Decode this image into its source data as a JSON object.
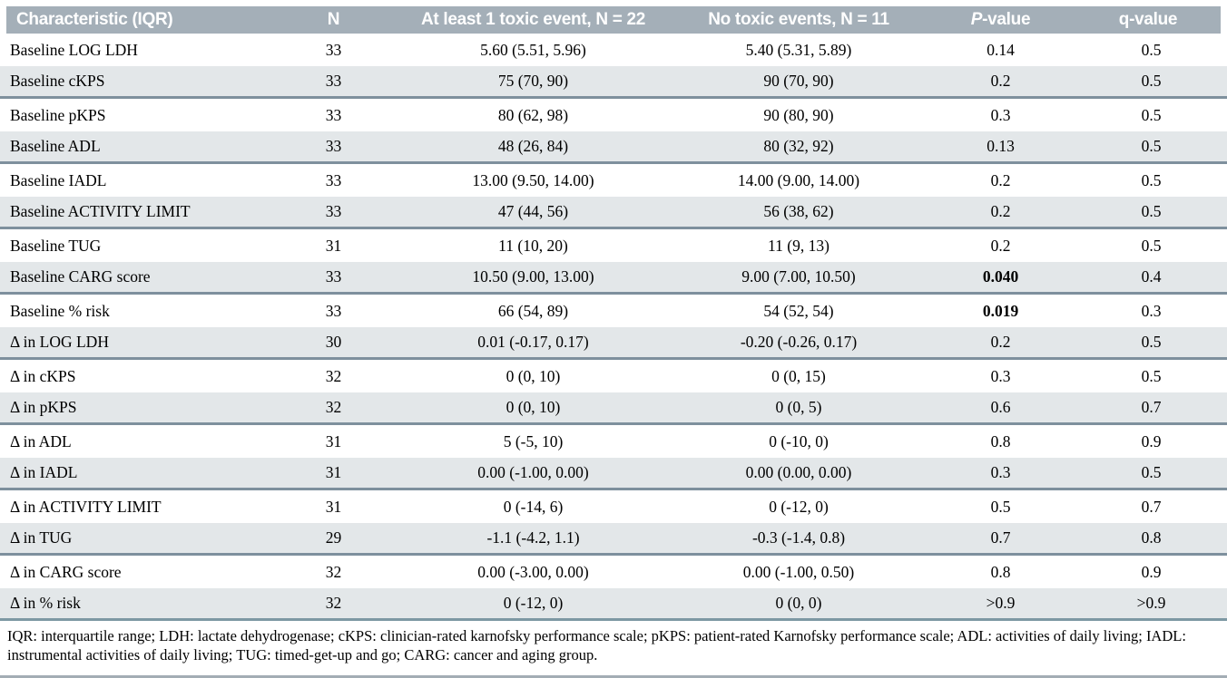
{
  "colors": {
    "header_bg": "#a4afb8",
    "alt_row_bg": "#e3e7e9",
    "row_separator": "#7e909d",
    "footnote_rule": "#7d98a3",
    "bottom_rule": "#a3adb4",
    "header_text": "#ffffff",
    "body_text": "#000000"
  },
  "table": {
    "columns": [
      "Characteristic (IQR)",
      "N",
      "At least 1 toxic event, N = 22",
      "No toxic events, N = 11",
      "P-value",
      "q-value"
    ],
    "p_value_header": {
      "italic": "P",
      "rest": "-value"
    },
    "rows": [
      {
        "characteristic": "Baseline LOG LDH",
        "n": "33",
        "toxic": "5.60 (5.51, 5.96)",
        "no_toxic": "5.40 (5.31, 5.89)",
        "p": "0.14",
        "q": "0.5",
        "p_bold": false
      },
      {
        "characteristic": "Baseline cKPS",
        "n": "33",
        "toxic": "75 (70, 90)",
        "no_toxic": "90 (70, 90)",
        "p": "0.2",
        "q": "0.5",
        "p_bold": false
      },
      {
        "characteristic": "Baseline pKPS",
        "n": "33",
        "toxic": "80 (62, 98)",
        "no_toxic": "90 (80, 90)",
        "p": "0.3",
        "q": "0.5",
        "p_bold": false
      },
      {
        "characteristic": "Baseline ADL",
        "n": "33",
        "toxic": "48 (26, 84)",
        "no_toxic": "80 (32, 92)",
        "p": "0.13",
        "q": "0.5",
        "p_bold": false
      },
      {
        "characteristic": "Baseline IADL",
        "n": "33",
        "toxic": "13.00 (9.50, 14.00)",
        "no_toxic": "14.00 (9.00, 14.00)",
        "p": "0.2",
        "q": "0.5",
        "p_bold": false
      },
      {
        "characteristic": "Baseline ACTIVITY LIMIT",
        "n": "33",
        "toxic": "47 (44, 56)",
        "no_toxic": "56 (38, 62)",
        "p": "0.2",
        "q": "0.5",
        "p_bold": false
      },
      {
        "characteristic": "Baseline TUG",
        "n": "31",
        "toxic": "11 (10, 20)",
        "no_toxic": "11 (9, 13)",
        "p": "0.2",
        "q": "0.5",
        "p_bold": false
      },
      {
        "characteristic": "Baseline CARG score",
        "n": "33",
        "toxic": "10.50 (9.00, 13.00)",
        "no_toxic": "9.00 (7.00, 10.50)",
        "p": "0.040",
        "q": "0.4",
        "p_bold": true
      },
      {
        "characteristic": "Baseline % risk",
        "n": "33",
        "toxic": "66 (54, 89)",
        "no_toxic": "54 (52, 54)",
        "p": "0.019",
        "q": "0.3",
        "p_bold": true
      },
      {
        "characteristic": "Δ in LOG LDH",
        "n": "30",
        "toxic": "0.01 (-0.17, 0.17)",
        "no_toxic": "-0.20 (-0.26, 0.17)",
        "p": "0.2",
        "q": "0.5",
        "p_bold": false
      },
      {
        "characteristic": "Δ in cKPS",
        "n": "32",
        "toxic": "0 (0, 10)",
        "no_toxic": "0 (0, 15)",
        "p": "0.3",
        "q": "0.5",
        "p_bold": false
      },
      {
        "characteristic": "Δ in pKPS",
        "n": "32",
        "toxic": "0 (0, 10)",
        "no_toxic": "0 (0, 5)",
        "p": "0.6",
        "q": "0.7",
        "p_bold": false
      },
      {
        "characteristic": "Δ in ADL",
        "n": "31",
        "toxic": "5 (-5, 10)",
        "no_toxic": "0 (-10, 0)",
        "p": "0.8",
        "q": "0.9",
        "p_bold": false
      },
      {
        "characteristic": "Δ in IADL",
        "n": "31",
        "toxic": "0.00 (-1.00, 0.00)",
        "no_toxic": "0.00 (0.00, 0.00)",
        "p": "0.3",
        "q": "0.5",
        "p_bold": false
      },
      {
        "characteristic": "Δ in ACTIVITY LIMIT",
        "n": "31",
        "toxic": "0 (-14, 6)",
        "no_toxic": "0 (-12, 0)",
        "p": "0.5",
        "q": "0.7",
        "p_bold": false
      },
      {
        "characteristic": "Δ in TUG",
        "n": "29",
        "toxic": "-1.1 (-4.2, 1.1)",
        "no_toxic": "-0.3 (-1.4, 0.8)",
        "p": "0.7",
        "q": "0.8",
        "p_bold": false
      },
      {
        "characteristic": "Δ in CARG score",
        "n": "32",
        "toxic": "0.00 (-3.00, 0.00)",
        "no_toxic": "0.00 (-1.00, 0.50)",
        "p": "0.8",
        "q": "0.9",
        "p_bold": false
      },
      {
        "characteristic": "Δ in % risk",
        "n": "32",
        "toxic": "0 (-12, 0)",
        "no_toxic": "0 (0, 0)",
        "p": ">0.9",
        "q": ">0.9",
        "p_bold": false
      }
    ]
  },
  "footnote": "IQR: interquartile range; LDH: lactate dehydrogenase; cKPS: clinician-rated karnofsky performance scale; pKPS: patient-rated Karnofsky performance scale; ADL: activities of daily living; IADL: instrumental activities of daily living; TUG: timed-get-up and go; CARG: cancer and aging group."
}
